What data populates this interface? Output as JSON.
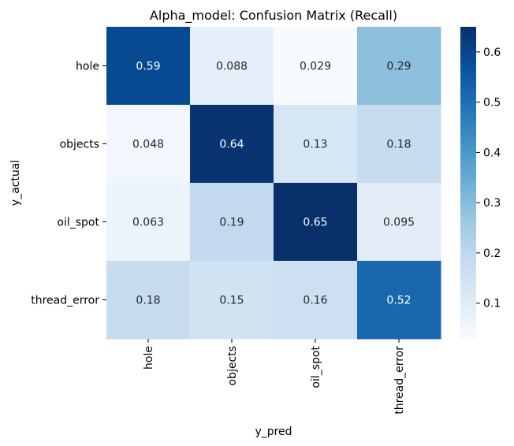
{
  "chart_data": {
    "type": "heatmap",
    "title": "Alpha_model: Confusion Matrix (Recall)",
    "xlabel": "y_pred",
    "ylabel": "y_actual",
    "x_categories": [
      "hole",
      "objects",
      "oil_spot",
      "thread_error"
    ],
    "y_categories": [
      "hole",
      "objects",
      "oil_spot",
      "thread_error"
    ],
    "values": [
      [
        0.59,
        0.088,
        0.029,
        0.29
      ],
      [
        0.048,
        0.64,
        0.13,
        0.18
      ],
      [
        0.063,
        0.19,
        0.65,
        0.095
      ],
      [
        0.18,
        0.15,
        0.16,
        0.52
      ]
    ],
    "cell_labels": [
      [
        "0.59",
        "0.088",
        "0.029",
        "0.29"
      ],
      [
        "0.048",
        "0.64",
        "0.13",
        "0.18"
      ],
      [
        "0.063",
        "0.19",
        "0.65",
        "0.095"
      ],
      [
        "0.18",
        "0.15",
        "0.16",
        "0.52"
      ]
    ],
    "colormap": "Blues",
    "colorbar": {
      "range": [
        0.029,
        0.65
      ],
      "ticks": [
        0.1,
        0.2,
        0.3,
        0.4,
        0.5,
        0.6
      ],
      "tick_labels": [
        "0.1",
        "0.2",
        "0.3",
        "0.4",
        "0.5",
        "0.6"
      ]
    }
  }
}
